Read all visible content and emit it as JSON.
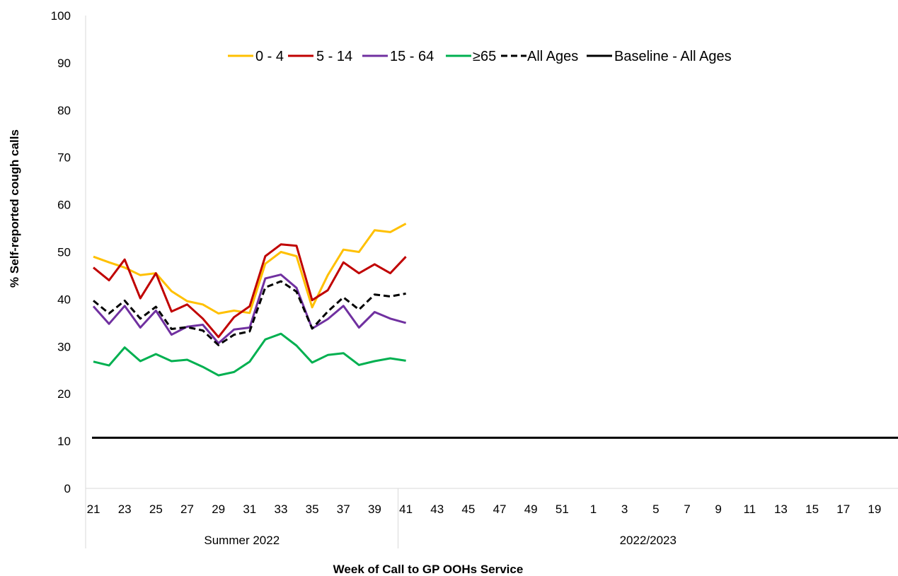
{
  "chart_data": {
    "type": "line",
    "title": "",
    "xlabel": "Week of Call to GP OOHs Service",
    "ylabel": "% Self-reported cough calls",
    "ylim": [
      0,
      100
    ],
    "y_ticks": [
      "0",
      "10",
      "20",
      "30",
      "40",
      "50",
      "60",
      "70",
      "80",
      "90",
      "100"
    ],
    "weeks": [
      "21",
      "22",
      "23",
      "24",
      "25",
      "26",
      "27",
      "28",
      "29",
      "30",
      "31",
      "32",
      "33",
      "34",
      "35",
      "36",
      "37",
      "38",
      "39",
      "40",
      "41",
      "42",
      "43",
      "44",
      "45",
      "46",
      "47",
      "48",
      "49",
      "50",
      "51",
      "52",
      "1",
      "2",
      "3",
      "4",
      "5",
      "6",
      "7",
      "8",
      "9",
      "10",
      "11",
      "12",
      "13",
      "14",
      "15",
      "16",
      "17",
      "18",
      "19",
      "20"
    ],
    "x_tick_labels": [
      "21",
      "23",
      "25",
      "27",
      "29",
      "31",
      "33",
      "35",
      "37",
      "39",
      "41",
      "43",
      "45",
      "47",
      "49",
      "51",
      "1",
      "3",
      "5",
      "7",
      "9",
      "11",
      "13",
      "15",
      "17",
      "19"
    ],
    "season_groups": [
      {
        "label": "Summer 2022",
        "from_week": "21",
        "to_week": "40"
      },
      {
        "label": "2022/2023",
        "from_week": "41",
        "to_week": "20"
      }
    ],
    "legend_position": "top",
    "grid": false,
    "series": [
      {
        "name": "0 - 4",
        "color": "#FFC000",
        "dash": false,
        "values": [
          49,
          47.8,
          46.7,
          45.1,
          45.5,
          41.7,
          39.6,
          38.9,
          37,
          37.6,
          37.1,
          47.5,
          50,
          49.1,
          38.3,
          45.1,
          50.5,
          50,
          54.6,
          54.2,
          56
        ]
      },
      {
        "name": "5 - 14",
        "color": "#C00000",
        "dash": false,
        "values": [
          46.7,
          44,
          48.4,
          40.2,
          45.5,
          37.4,
          38.9,
          35.9,
          32,
          36.2,
          38.5,
          49.1,
          51.6,
          51.3,
          39.8,
          41.9,
          47.8,
          45.5,
          47.4,
          45.5,
          49
        ]
      },
      {
        "name": "15 - 64",
        "color": "#7030A0",
        "dash": false,
        "values": [
          38.5,
          34.8,
          38.6,
          34,
          37.6,
          32.5,
          34.2,
          34.6,
          30.7,
          33.6,
          34,
          44.4,
          45.2,
          42.4,
          33.8,
          35.8,
          38.6,
          34,
          37.3,
          35.9,
          35
        ]
      },
      {
        "name": "≥65",
        "color": "#00B050",
        "dash": false,
        "values": [
          26.8,
          26,
          29.8,
          26.9,
          28.4,
          26.9,
          27.2,
          25.7,
          23.9,
          24.6,
          26.8,
          31.5,
          32.7,
          30.2,
          26.6,
          28.2,
          28.6,
          26.1,
          26.9,
          27.5,
          27
        ]
      },
      {
        "name": "All Ages",
        "color": "#000000",
        "dash": true,
        "values": [
          39.7,
          37,
          39.7,
          35.9,
          38.4,
          33.7,
          34.1,
          33.4,
          30.3,
          32.5,
          33.2,
          42.5,
          43.8,
          41.6,
          33.8,
          37.4,
          40.4,
          37.8,
          41,
          40.6,
          41.2
        ]
      },
      {
        "name": "Baseline - All Ages",
        "color": "#000000",
        "dash": false,
        "constant": 10.7
      }
    ]
  }
}
